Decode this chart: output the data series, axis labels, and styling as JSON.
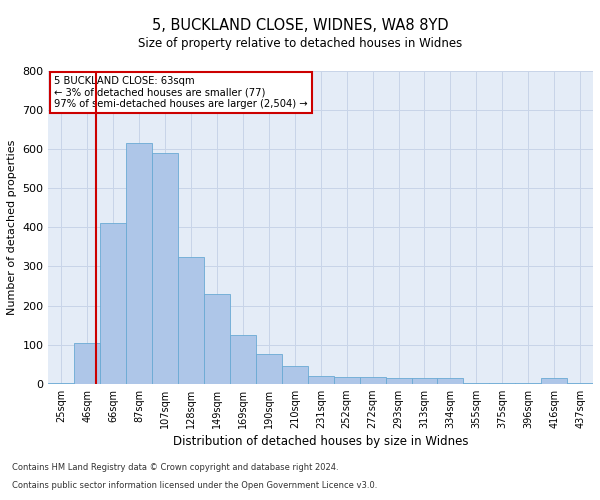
{
  "title1": "5, BUCKLAND CLOSE, WIDNES, WA8 8YD",
  "title2": "Size of property relative to detached houses in Widnes",
  "xlabel": "Distribution of detached houses by size in Widnes",
  "ylabel": "Number of detached properties",
  "footnote1": "Contains HM Land Registry data © Crown copyright and database right 2024.",
  "footnote2": "Contains public sector information licensed under the Open Government Licence v3.0.",
  "bar_labels": [
    "25sqm",
    "46sqm",
    "66sqm",
    "87sqm",
    "107sqm",
    "128sqm",
    "149sqm",
    "169sqm",
    "190sqm",
    "210sqm",
    "231sqm",
    "252sqm",
    "272sqm",
    "293sqm",
    "313sqm",
    "334sqm",
    "355sqm",
    "375sqm",
    "396sqm",
    "416sqm",
    "437sqm"
  ],
  "bar_values": [
    2,
    105,
    410,
    615,
    590,
    325,
    230,
    125,
    75,
    45,
    20,
    18,
    18,
    15,
    15,
    15,
    2,
    2,
    2,
    15,
    2
  ],
  "bar_color": "#aec6e8",
  "bar_edge_color": "#6aaad4",
  "annotation_text": "5 BUCKLAND CLOSE: 63sqm\n← 3% of detached houses are smaller (77)\n97% of semi-detached houses are larger (2,504) →",
  "vline_color": "#cc0000",
  "vline_x_index": 1.85,
  "ylim": [
    0,
    800
  ],
  "yticks": [
    0,
    100,
    200,
    300,
    400,
    500,
    600,
    700,
    800
  ],
  "grid_color": "#c8d4e8",
  "bg_color": "#e4ecf7",
  "annotation_box_facecolor": "#ffffff",
  "annotation_box_edgecolor": "#cc0000",
  "fig_width": 6.0,
  "fig_height": 5.0,
  "dpi": 100
}
